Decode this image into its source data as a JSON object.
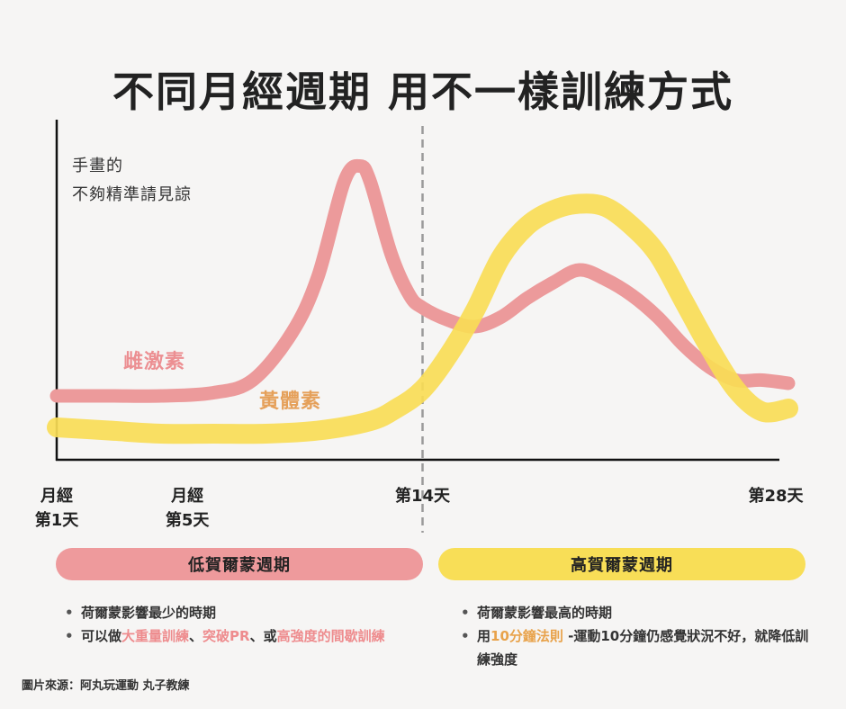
{
  "title": "不同月經週期  用不一樣訓練方式",
  "note": [
    "手畫的",
    "不夠精準請見諒"
  ],
  "colors": {
    "estrogen": "#ec9a9b",
    "progesterone": "#f8dc56",
    "estrogen_label": "#ec8f92",
    "progesterone_label": "#e5a05a",
    "low_phase": "#ee9a9c",
    "high_phase": "#f8de57"
  },
  "chart_data": {
    "type": "line",
    "x_labels": [
      {
        "day": 1,
        "text": [
          "月經",
          "第1天"
        ]
      },
      {
        "day": 5,
        "text": [
          "月經",
          "第5天"
        ]
      },
      {
        "day": 14,
        "text": [
          "第14天"
        ]
      },
      {
        "day": 28,
        "text": [
          "第28天"
        ]
      }
    ],
    "xlim": [
      0,
      28
    ],
    "ylim": [
      0,
      100
    ],
    "divider_day": 14,
    "series": [
      {
        "name": "雌激素",
        "x": [
          0,
          2,
          4,
          6,
          7.5,
          9,
          10,
          11,
          11.6,
          12,
          12.8,
          13.5,
          14,
          15,
          16,
          17,
          18,
          19,
          20,
          21,
          22,
          23,
          24,
          25,
          26,
          27,
          28
        ],
        "y": [
          20,
          20,
          20,
          21,
          25,
          40,
          58,
          88,
          93,
          88,
          65,
          52,
          48,
          44,
          42,
          45,
          51,
          56,
          60,
          57,
          52,
          45,
          36,
          29,
          25,
          25,
          24
        ]
      },
      {
        "name": "黃體素",
        "x": [
          0,
          2,
          4,
          6,
          8,
          10,
          12,
          13,
          14,
          15,
          16,
          17,
          18,
          19,
          20,
          21,
          22,
          23,
          24,
          25,
          26,
          27,
          28
        ],
        "y": [
          10,
          9,
          8,
          8,
          8,
          9,
          12,
          16,
          22,
          33,
          47,
          64,
          74,
          79,
          81,
          80,
          74,
          65,
          50,
          35,
          22,
          15,
          16
        ]
      }
    ]
  },
  "labels": {
    "estrogen": "雌激素",
    "progesterone": "黃體素"
  },
  "phases": {
    "low": {
      "title": "低賀爾蒙週期",
      "items": [
        [
          {
            "t": "荷爾蒙影響最少的時期"
          }
        ],
        [
          {
            "t": "可以做"
          },
          {
            "t": "大重量訓練",
            "c": "red"
          },
          {
            "t": "、"
          },
          {
            "t": "突破PR",
            "c": "red"
          },
          {
            "t": "、或"
          },
          {
            "t": "高強度的間歇訓練",
            "c": "red"
          }
        ]
      ]
    },
    "high": {
      "title": "高賀爾蒙週期",
      "items": [
        [
          {
            "t": "荷爾蒙影響最高的時期"
          }
        ],
        [
          {
            "t": "用"
          },
          {
            "t": "10分鐘法則",
            "c": "orange"
          },
          {
            "t": " -運動10分鐘仍感覺狀況不好，就降低訓練強度"
          }
        ]
      ]
    }
  },
  "source": "圖片來源：阿丸玩運動  丸子教練"
}
